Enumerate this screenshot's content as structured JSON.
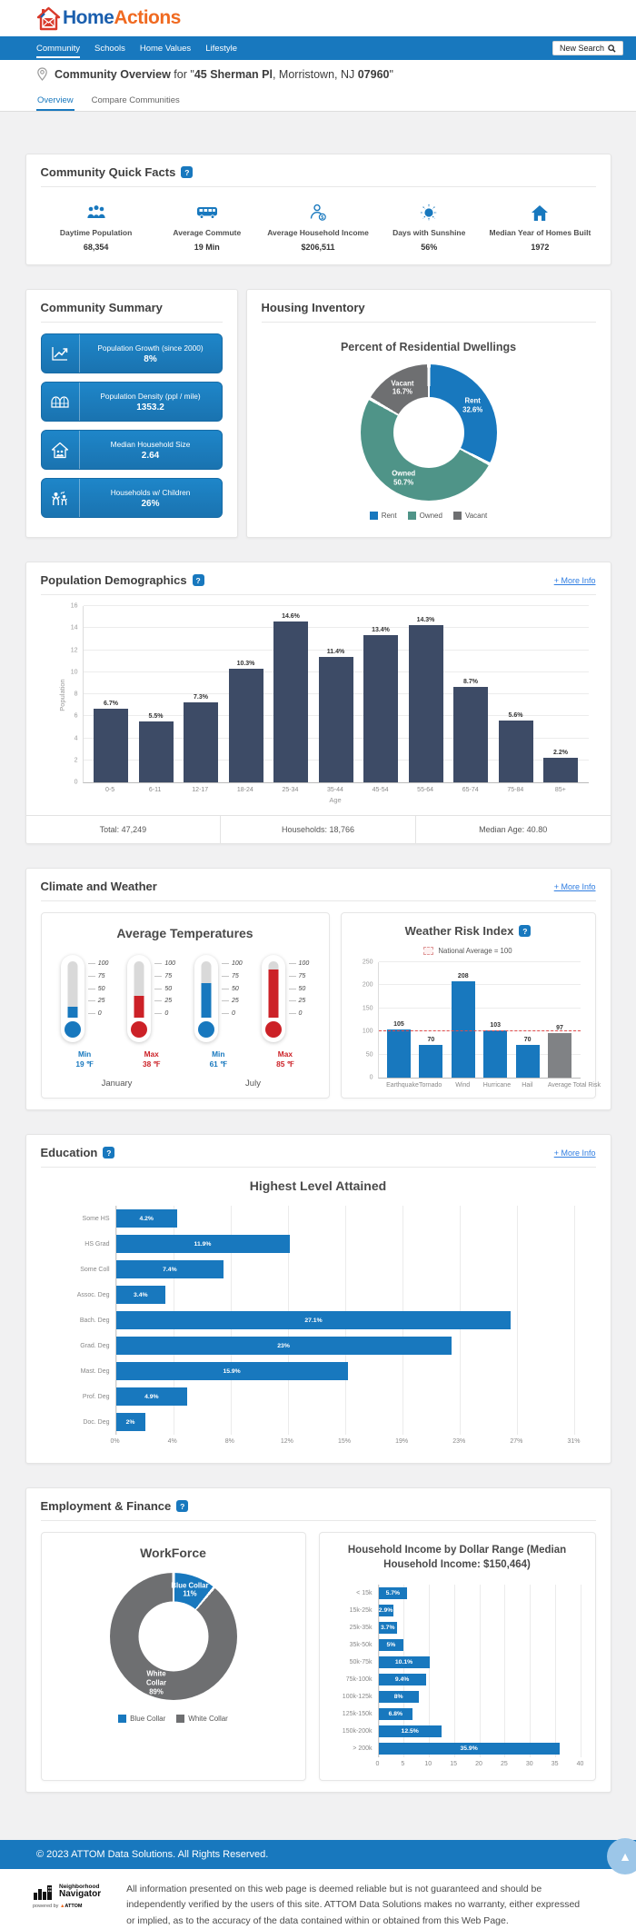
{
  "brand": {
    "home": "Home",
    "actions": "Actions"
  },
  "nav": {
    "items": [
      {
        "label": "Community"
      },
      {
        "label": "Schools"
      },
      {
        "label": "Home Values"
      },
      {
        "label": "Lifestyle"
      }
    ],
    "search_label": "New Search"
  },
  "page_header": {
    "title": "Community Overview",
    "mid": " for \"",
    "address": "45 Sherman Pl",
    "rest": ", Morristown, NJ ",
    "zip": "07960",
    "close_quote": "\""
  },
  "tabs": {
    "overview": "Overview",
    "compare": "Compare Communities"
  },
  "quick_facts": {
    "title": "Community Quick Facts",
    "help": "?",
    "items": [
      {
        "label": "Daytime Population",
        "value": "68,354"
      },
      {
        "label": "Average Commute",
        "value": "19 Min"
      },
      {
        "label": "Average Household Income",
        "value": "$206,511"
      },
      {
        "label": "Days with Sunshine",
        "value": "56%"
      },
      {
        "label": "Median Year of Homes Built",
        "value": "1972"
      }
    ]
  },
  "summary": {
    "title": "Community Summary",
    "tiles": [
      {
        "label": "Population Growth (since 2000)",
        "value": "8%"
      },
      {
        "label": "Population Density (ppl / mile)",
        "value": "1353.2"
      },
      {
        "label": "Median Household Size",
        "value": "2.64"
      },
      {
        "label": "Households w/ Children",
        "value": "26%"
      }
    ]
  },
  "housing": {
    "title": "Housing Inventory",
    "chart_title": "Percent of Residential Dwellings",
    "chart_data": {
      "type": "pie",
      "slices": [
        {
          "label": "Rent",
          "pct": 32.6,
          "color": "#1878be"
        },
        {
          "label": "Owned",
          "pct": 50.7,
          "color": "#4f9488"
        },
        {
          "label": "Vacant",
          "pct": 16.7,
          "color": "#6e6f71"
        }
      ]
    }
  },
  "demographics": {
    "title": "Population Demographics",
    "help": "?",
    "more_info": "+ More Info",
    "chart_data": {
      "type": "bar",
      "categories": [
        "0-5",
        "6-11",
        "12-17",
        "18-24",
        "25-34",
        "35-44",
        "45-54",
        "55-64",
        "65-74",
        "75-84",
        "85+"
      ],
      "values": [
        6.7,
        5.5,
        7.3,
        10.3,
        14.6,
        11.4,
        13.4,
        14.3,
        8.7,
        5.6,
        2.2
      ],
      "labels": [
        "6.7%",
        "5.5%",
        "7.3%",
        "10.3%",
        "14.6%",
        "11.4%",
        "13.4%",
        "14.3%",
        "8.7%",
        "5.6%",
        "2.2%"
      ],
      "ylabel": "Population",
      "xlabel": "Age",
      "ymax": 16,
      "yticks": [
        16,
        14,
        12,
        10,
        8,
        6,
        4,
        2,
        0
      ],
      "bar_color": "#3d4b66"
    },
    "footer": {
      "total": "Total: 47,249",
      "households": "Households: 18,766",
      "median_age": "Median Age: 40.80"
    }
  },
  "climate": {
    "title": "Climate and Weather",
    "more_info": "+ More Info",
    "temps": {
      "title": "Average Temperatures",
      "scale": [
        "100",
        "75",
        "50",
        "25",
        "0"
      ],
      "items": [
        {
          "kind": "min",
          "label": "Min",
          "value": 19,
          "display": "19 ℉"
        },
        {
          "kind": "max",
          "label": "Max",
          "value": 38,
          "display": "38 ℉"
        },
        {
          "kind": "min",
          "label": "Min",
          "value": 61,
          "display": "61 ℉"
        },
        {
          "kind": "max",
          "label": "Max",
          "value": 85,
          "display": "85 ℉"
        }
      ],
      "months": [
        "January",
        "July"
      ]
    },
    "risk": {
      "title": "Weather Risk Index",
      "help": "?",
      "legend": "National Average = 100",
      "chart_data": {
        "type": "bar",
        "categories": [
          "Earthquake",
          "Tornado",
          "Wind",
          "Hurricane",
          "Hail",
          "Average Total Risk"
        ],
        "values": [
          105,
          70,
          208,
          103,
          70,
          97
        ],
        "labels": [
          "105",
          "70",
          "208",
          "103",
          "70",
          "97"
        ],
        "colors": [
          "#1878be",
          "#1878be",
          "#1878be",
          "#1878be",
          "#1878be",
          "#808285"
        ],
        "ymax": 250,
        "yticks": [
          250,
          200,
          150,
          100,
          50,
          0
        ],
        "reference_line": 100
      }
    }
  },
  "education": {
    "title": "Education",
    "help": "?",
    "more_info": "+ More Info",
    "chart_title": "Highest Level Attained",
    "chart_data": {
      "type": "bar",
      "categories": [
        "Some HS",
        "HS Grad",
        "Some Coll",
        "Assoc. Deg",
        "Bach. Deg",
        "Grad. Deg",
        "Mast. Deg",
        "Prof. Deg",
        "Doc. Deg"
      ],
      "values": [
        4.2,
        11.9,
        7.4,
        3.4,
        27.1,
        23,
        15.9,
        4.9,
        2
      ],
      "labels": [
        "4.2%",
        "11.9%",
        "7.4%",
        "3.4%",
        "27.1%",
        "23%",
        "15.9%",
        "4.9%",
        "2%"
      ],
      "xticks": [
        "0%",
        "4%",
        "8%",
        "12%",
        "15%",
        "19%",
        "23%",
        "27%",
        "31%"
      ],
      "xmax": 31.4,
      "bar_color": "#1878be"
    }
  },
  "employment": {
    "title": "Employment & Finance",
    "help": "?",
    "workforce": {
      "title": "WorkForce",
      "chart_data": {
        "type": "pie",
        "slices": [
          {
            "label": "Blue Collar",
            "pct": 11,
            "color": "#1878be"
          },
          {
            "label": "White Collar",
            "pct": 89,
            "color": "#6e6f71"
          }
        ]
      }
    },
    "income": {
      "title": "Household Income by Dollar Range (Median Household Income: $150,464)",
      "chart_data": {
        "type": "bar",
        "categories": [
          "< 15k",
          "15k-25k",
          "25k-35k",
          "35k-50k",
          "50k-75k",
          "75k-100k",
          "100k-125k",
          "125k-150k",
          "150k-200k",
          "> 200k"
        ],
        "values": [
          5.7,
          2.9,
          3.7,
          5,
          10.1,
          9.4,
          8,
          6.8,
          12.5,
          35.9
        ],
        "labels": [
          "5.7%",
          "2.9%",
          "3.7%",
          "5%",
          "10.1%",
          "9.4%",
          "8%",
          "6.8%",
          "12.5%",
          "35.9%"
        ],
        "xticks": [
          "0",
          "5",
          "10",
          "15",
          "20",
          "25",
          "30",
          "35",
          "40"
        ],
        "xmax": 40,
        "bar_color": "#1878be"
      }
    }
  },
  "footer": {
    "copyright": "© 2023 ATTOM Data Solutions. All Rights Reserved.",
    "logo": {
      "line1": "Neighborhood",
      "line2": "Navigator",
      "powered": "powered by ",
      "attom": "ATTOM"
    },
    "disclaimer": "All information presented on this web page is deemed reliable but is not guaranteed and should be independently verified by the users of this site. ATTOM Data Solutions makes no warranty, either expressed or implied, as to the accuracy of the data contained within or obtained from this Web Page."
  }
}
